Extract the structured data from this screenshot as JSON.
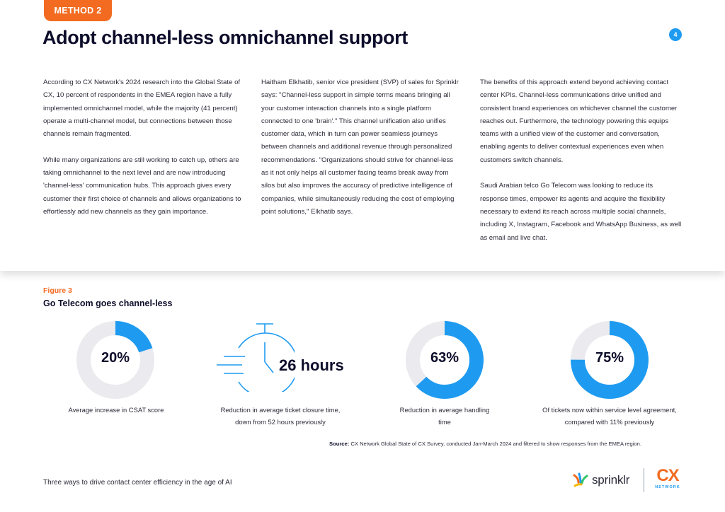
{
  "header": {
    "method_tag": "METHOD 2",
    "title": "Adopt channel-less omnichannel support",
    "page_number": "4"
  },
  "columns": [
    {
      "paragraphs": [
        "According to CX Network's 2024 research into the Global State of CX, 10 percent of respondents in the EMEA region have a fully implemented omnichannel model, while the majority (41 percent) operate a multi-channel model, but connections between those channels remain fragmented.",
        "While many organizations are still working to catch up, others are taking omnichannel to the next level and are now introducing 'channel-less' communication hubs. This approach gives every customer their first choice of channels and allows organizations to effortlessly add new channels as they gain importance."
      ]
    },
    {
      "paragraphs": [
        "Haitham Elkhatib, senior vice president (SVP) of sales for Sprinklr says: \"Channel-less support in simple terms means bringing all your customer interaction channels into a single platform connected to one 'brain'.\" This channel unification also unifies customer data, which in turn can power seamless journeys between channels and additional revenue through personalized recommendations. \"Organizations should strive for channel-less as it not only helps all customer facing teams break away from silos but also improves the accuracy of predictive intelligence of companies, while simultaneously reducing the cost of employing point solutions,\" Elkhatib says."
      ]
    },
    {
      "paragraphs": [
        "The benefits of this approach extend beyond achieving contact center KPIs. Channel-less communications drive unified and consistent brand experiences on whichever channel the customer reaches out. Furthermore, the technology powering this equips teams with a unified view of the customer and conversation, enabling agents to deliver contextual experiences even when customers switch channels.",
        "Saudi Arabian telco Go Telecom was looking to reduce its response times, empower its agents and acquire the flexibility necessary to extend its reach across multiple social channels, including X, Instagram, Facebook and WhatsApp Business, as well as email and live chat."
      ]
    }
  ],
  "figure": {
    "label": "Figure 3",
    "title": "Go Telecom goes channel-less",
    "stats": [
      {
        "value_text": "20%",
        "fraction": 0.2,
        "caption": "Average increase in CSAT score"
      },
      {
        "value_text": "26 hours",
        "caption": "Reduction in average ticket closure time, down from 52 hours previously"
      },
      {
        "value_text": "63%",
        "fraction": 0.63,
        "caption": "Reduction in average handling time"
      },
      {
        "value_text": "75%",
        "fraction": 0.75,
        "caption": "Of tickets now within service level agreement, compared with 11% previously"
      }
    ],
    "source_label": "Source:",
    "source_text": "CX Network Global State of CX Survey, conducted Jan-March 2024 and filtered to show responses from the EMEA region."
  },
  "footer": {
    "text": "Three ways to drive contact center efficiency in the age of AI",
    "logo_sprinklr": "sprinklr",
    "logo_cx": "CX",
    "logo_cx_sub": "NETWORK"
  },
  "colors": {
    "accent_orange": "#f26b21",
    "accent_blue": "#1e9bf0",
    "donut_track": "#eaeaef"
  }
}
